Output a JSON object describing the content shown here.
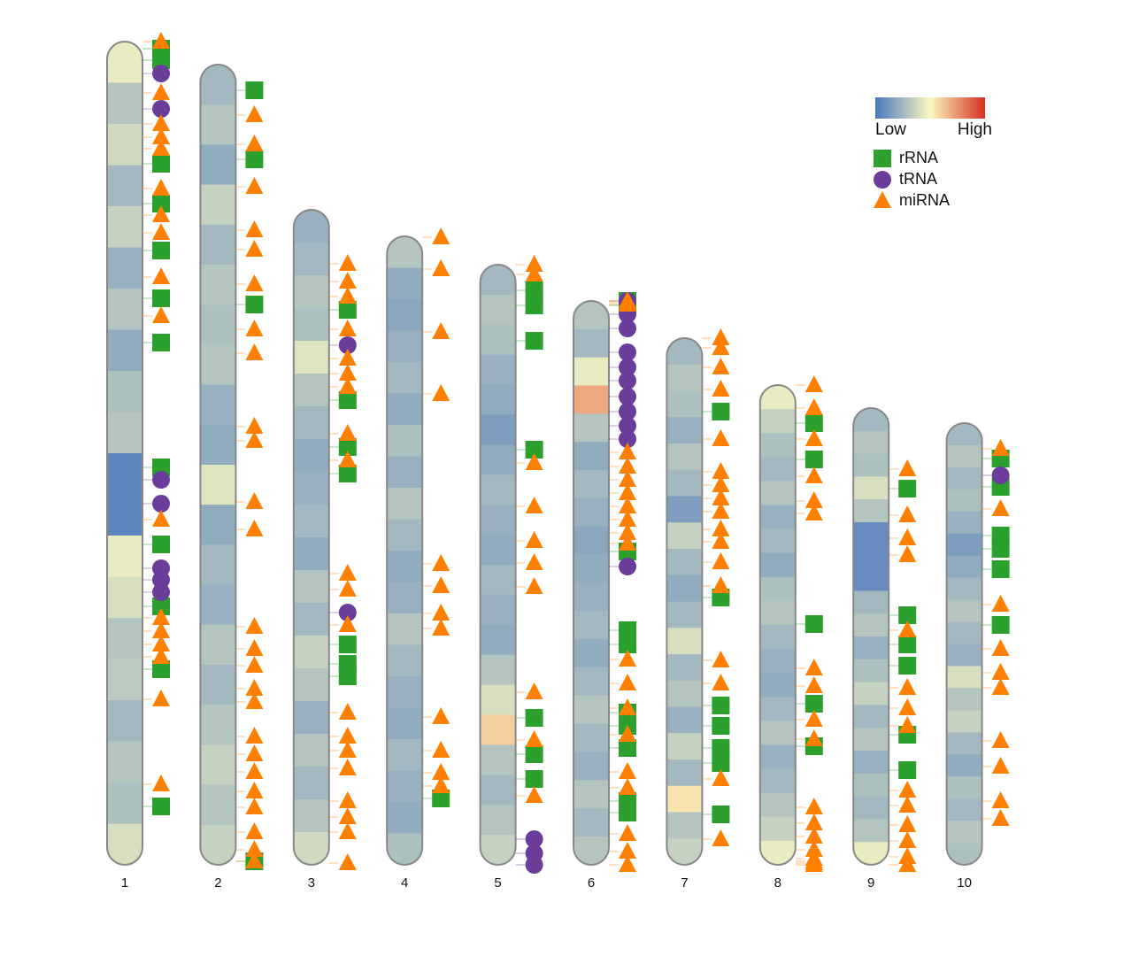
{
  "chart_data": {
    "type": "ideogram",
    "legend": {
      "low": "Low",
      "high": "High",
      "colors": [
        "#4a78bf",
        "#fbf8c0",
        "#d7301f"
      ]
    },
    "types": [
      {
        "name": "rRNA",
        "color": "#2ca02c",
        "shape": "square"
      },
      {
        "name": "tRNA",
        "color": "#6a3d9a",
        "shape": "circle"
      },
      {
        "name": "miRNA",
        "color": "#ff7f00",
        "shape": "triangle"
      }
    ],
    "chromosomes": [
      {
        "name": "1",
        "length": 930,
        "density": [
          0.45,
          0.3,
          0.38,
          0.25,
          0.35,
          0.22,
          0.3,
          0.2,
          0.28,
          0.3,
          0.05,
          0.05,
          0.45,
          0.4,
          0.3,
          0.32,
          0.25,
          0.3,
          0.28,
          0.4
        ],
        "rRNA": [
          8,
          21,
          138,
          183,
          236,
          290,
          340,
          481,
          568,
          638,
          709,
          864
        ],
        "tRNA": [
          36,
          76,
          495,
          522,
          595,
          608,
          622
        ],
        "miRNA": [
          0,
          58,
          93,
          108,
          121,
          166,
          196,
          216,
          266,
          310,
          540,
          651,
          666,
          681,
          695,
          743,
          839
        ]
      },
      {
        "name": "2",
        "length": 904,
        "density": [
          0.25,
          0.3,
          0.2,
          0.35,
          0.25,
          0.3,
          0.28,
          0.3,
          0.22,
          0.2,
          0.42,
          0.2,
          0.25,
          0.22,
          0.3,
          0.25,
          0.3,
          0.35,
          0.3,
          0.35
        ],
        "rRNA": [
          29,
          107,
          271,
          900
        ],
        "tRNA": [],
        "miRNA": [
          57,
          90,
          138,
          187,
          209,
          248,
          299,
          326,
          409,
          425,
          494,
          525,
          635,
          660,
          679,
          705,
          720,
          759,
          779,
          799,
          821,
          839,
          867,
          887,
          900
        ]
      },
      {
        "name": "3",
        "length": 740,
        "density": [
          0.22,
          0.25,
          0.3,
          0.28,
          0.42,
          0.3,
          0.25,
          0.2,
          0.22,
          0.25,
          0.2,
          0.3,
          0.25,
          0.35,
          0.3,
          0.22,
          0.3,
          0.25,
          0.3,
          0.38
        ],
        "rRNA": [
          113,
          215,
          268,
          298,
          491,
          513,
          527
        ],
        "tRNA": [
          153,
          455
        ],
        "miRNA": [
          61,
          81,
          98,
          135,
          168,
          185,
          200,
          253,
          283,
          411,
          429,
          469,
          568,
          595,
          611,
          631,
          668,
          686,
          703,
          738
        ]
      },
      {
        "name": "4",
        "length": 710,
        "density": [
          0.3,
          0.2,
          0.18,
          0.22,
          0.25,
          0.2,
          0.28,
          0.22,
          0.3,
          0.25,
          0.2,
          0.22,
          0.3,
          0.25,
          0.22,
          0.2,
          0.25,
          0.22,
          0.2,
          0.28
        ],
        "rRNA": [
          635
        ],
        "tRNA": [],
        "miRNA": [
          1,
          37,
          108,
          178,
          370,
          395,
          426,
          443,
          543,
          581,
          606,
          621
        ]
      },
      {
        "name": "5",
        "length": 678,
        "density": [
          0.25,
          0.3,
          0.28,
          0.22,
          0.2,
          0.15,
          0.2,
          0.25,
          0.22,
          0.2,
          0.25,
          0.22,
          0.2,
          0.3,
          0.4,
          0.6,
          0.3,
          0.25,
          0.3,
          0.35
        ],
        "rRNA": [
          29,
          46,
          86,
          209,
          512,
          553,
          581
        ],
        "tRNA": [
          649,
          665,
          678
        ],
        "miRNA": [
          0,
          11,
          224,
          273,
          312,
          337,
          364,
          483,
          537,
          600
        ]
      },
      {
        "name": "6",
        "length": 637,
        "density": [
          0.3,
          0.25,
          0.45,
          0.7,
          0.3,
          0.2,
          0.25,
          0.22,
          0.18,
          0.2,
          0.22,
          0.25,
          0.2,
          0.25,
          0.3,
          0.25,
          0.22,
          0.3,
          0.25,
          0.3
        ],
        "rRNA": [
          0,
          5,
          283,
          372,
          388,
          465,
          480,
          505,
          565,
          578
        ],
        "tRNA": [
          0,
          15,
          31,
          58,
          75,
          90,
          108,
          125,
          141,
          156,
          300
        ],
        "miRNA": [
          0,
          2,
          4,
          171,
          187,
          202,
          217,
          232,
          247,
          262,
          274,
          405,
          432,
          460,
          490,
          532,
          550,
          602,
          622,
          637
        ]
      },
      {
        "name": "7",
        "length": 595,
        "density": [
          0.25,
          0.3,
          0.28,
          0.22,
          0.3,
          0.25,
          0.15,
          0.35,
          0.25,
          0.2,
          0.25,
          0.4,
          0.25,
          0.3,
          0.22,
          0.35,
          0.25,
          0.55,
          0.3,
          0.35
        ],
        "rRNA": [
          83,
          293,
          415,
          438,
          463,
          480,
          538
        ],
        "tRNA": [],
        "miRNA": [
          0,
          11,
          33,
          58,
          114,
          151,
          166,
          181,
          196,
          216,
          230,
          253,
          280,
          364,
          390,
          498,
          566
        ]
      },
      {
        "name": "8",
        "length": 542,
        "density": [
          0.45,
          0.35,
          0.28,
          0.25,
          0.3,
          0.22,
          0.25,
          0.2,
          0.28,
          0.3,
          0.25,
          0.22,
          0.2,
          0.25,
          0.3,
          0.22,
          0.25,
          0.3,
          0.35,
          0.45
        ],
        "rRNA": [
          43,
          84,
          270,
          360,
          408
        ],
        "tRNA": [],
        "miRNA": [
          0,
          26,
          61,
          103,
          131,
          145,
          320,
          340,
          378,
          400,
          477,
          495,
          510,
          525,
          535,
          538,
          540,
          542
        ]
      },
      {
        "name": "9",
        "length": 516,
        "density": [
          0.25,
          0.3,
          0.28,
          0.4,
          0.3,
          0.08,
          0.08,
          0.08,
          0.25,
          0.3,
          0.22,
          0.28,
          0.35,
          0.25,
          0.3,
          0.22,
          0.28,
          0.25,
          0.3,
          0.45
        ],
        "rRNA": [
          91,
          234,
          267,
          291,
          369,
          409
        ],
        "tRNA": [],
        "miRNA": [
          69,
          121,
          147,
          166,
          251,
          316,
          339,
          359,
          432,
          449,
          471,
          489,
          507,
          516
        ]
      },
      {
        "name": "10",
        "length": 499,
        "density": [
          0.25,
          0.3,
          0.25,
          0.28,
          0.22,
          0.15,
          0.2,
          0.25,
          0.3,
          0.25,
          0.22,
          0.4,
          0.3,
          0.35,
          0.25,
          0.2,
          0.28,
          0.25,
          0.3,
          0.28
        ],
        "rRNA": [
          40,
          72,
          127,
          142,
          165,
          228
        ],
        "tRNA": [
          59
        ],
        "miRNA": [
          29,
          97,
          205,
          255,
          282,
          299,
          359,
          388,
          427,
          447
        ]
      }
    ]
  }
}
